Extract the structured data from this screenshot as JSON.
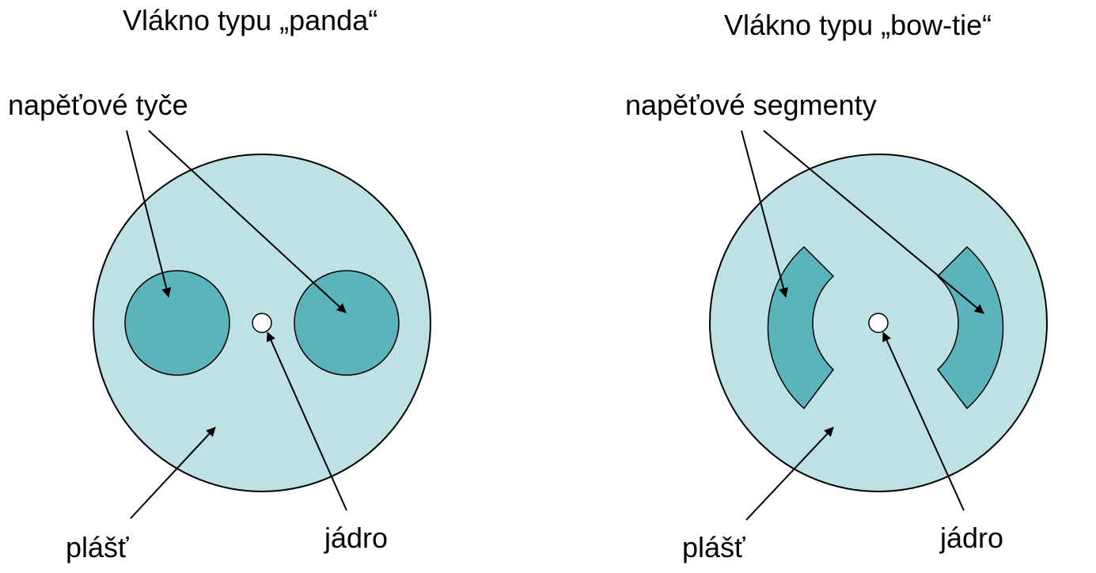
{
  "panda": {
    "title": "Vlákno typu „panda“",
    "stress_label": "napěťové tyče",
    "cladding_label": "plášť",
    "core_label": "jádro"
  },
  "bowtie": {
    "title": "Vlákno typu „bow-tie“",
    "stress_label": "napěťové segmenty",
    "cladding_label": "plášť",
    "core_label": "jádro"
  },
  "colors": {
    "cladding": "#bde1e4",
    "stress": "#5bb3bb",
    "core": "#ffffff",
    "outline": "#000000"
  }
}
